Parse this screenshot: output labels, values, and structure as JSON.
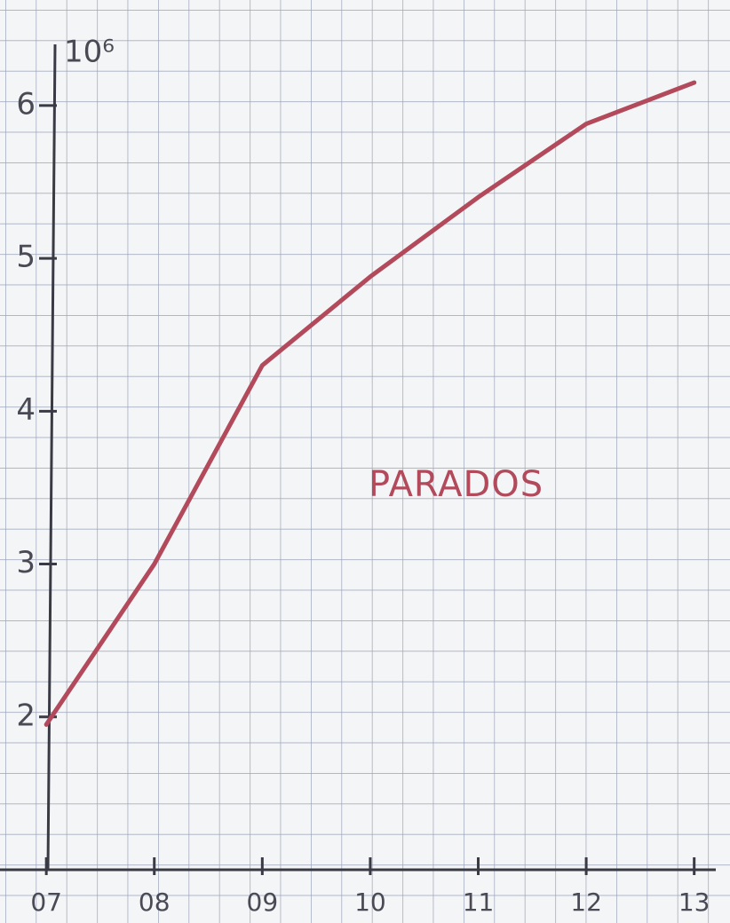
{
  "chart_data": {
    "type": "line",
    "ylabel": "10⁶",
    "x": [
      7,
      8,
      9,
      10,
      11,
      12,
      13
    ],
    "series": [
      {
        "name": "PARADOS",
        "color": "#b24a5c",
        "values": [
          1.95,
          3.0,
          4.3,
          4.88,
          5.4,
          5.88,
          6.15
        ]
      }
    ],
    "xlim": [
      6.9,
      13.2
    ],
    "xticks": [
      {
        "value": 7,
        "label": "07"
      },
      {
        "value": 8,
        "label": "08"
      },
      {
        "value": 9,
        "label": "09"
      },
      10,
      11,
      12,
      13
    ],
    "ylim": [
      1,
      6.4
    ],
    "yticks": [
      2,
      3,
      4,
      5,
      6
    ],
    "grid": true
  }
}
